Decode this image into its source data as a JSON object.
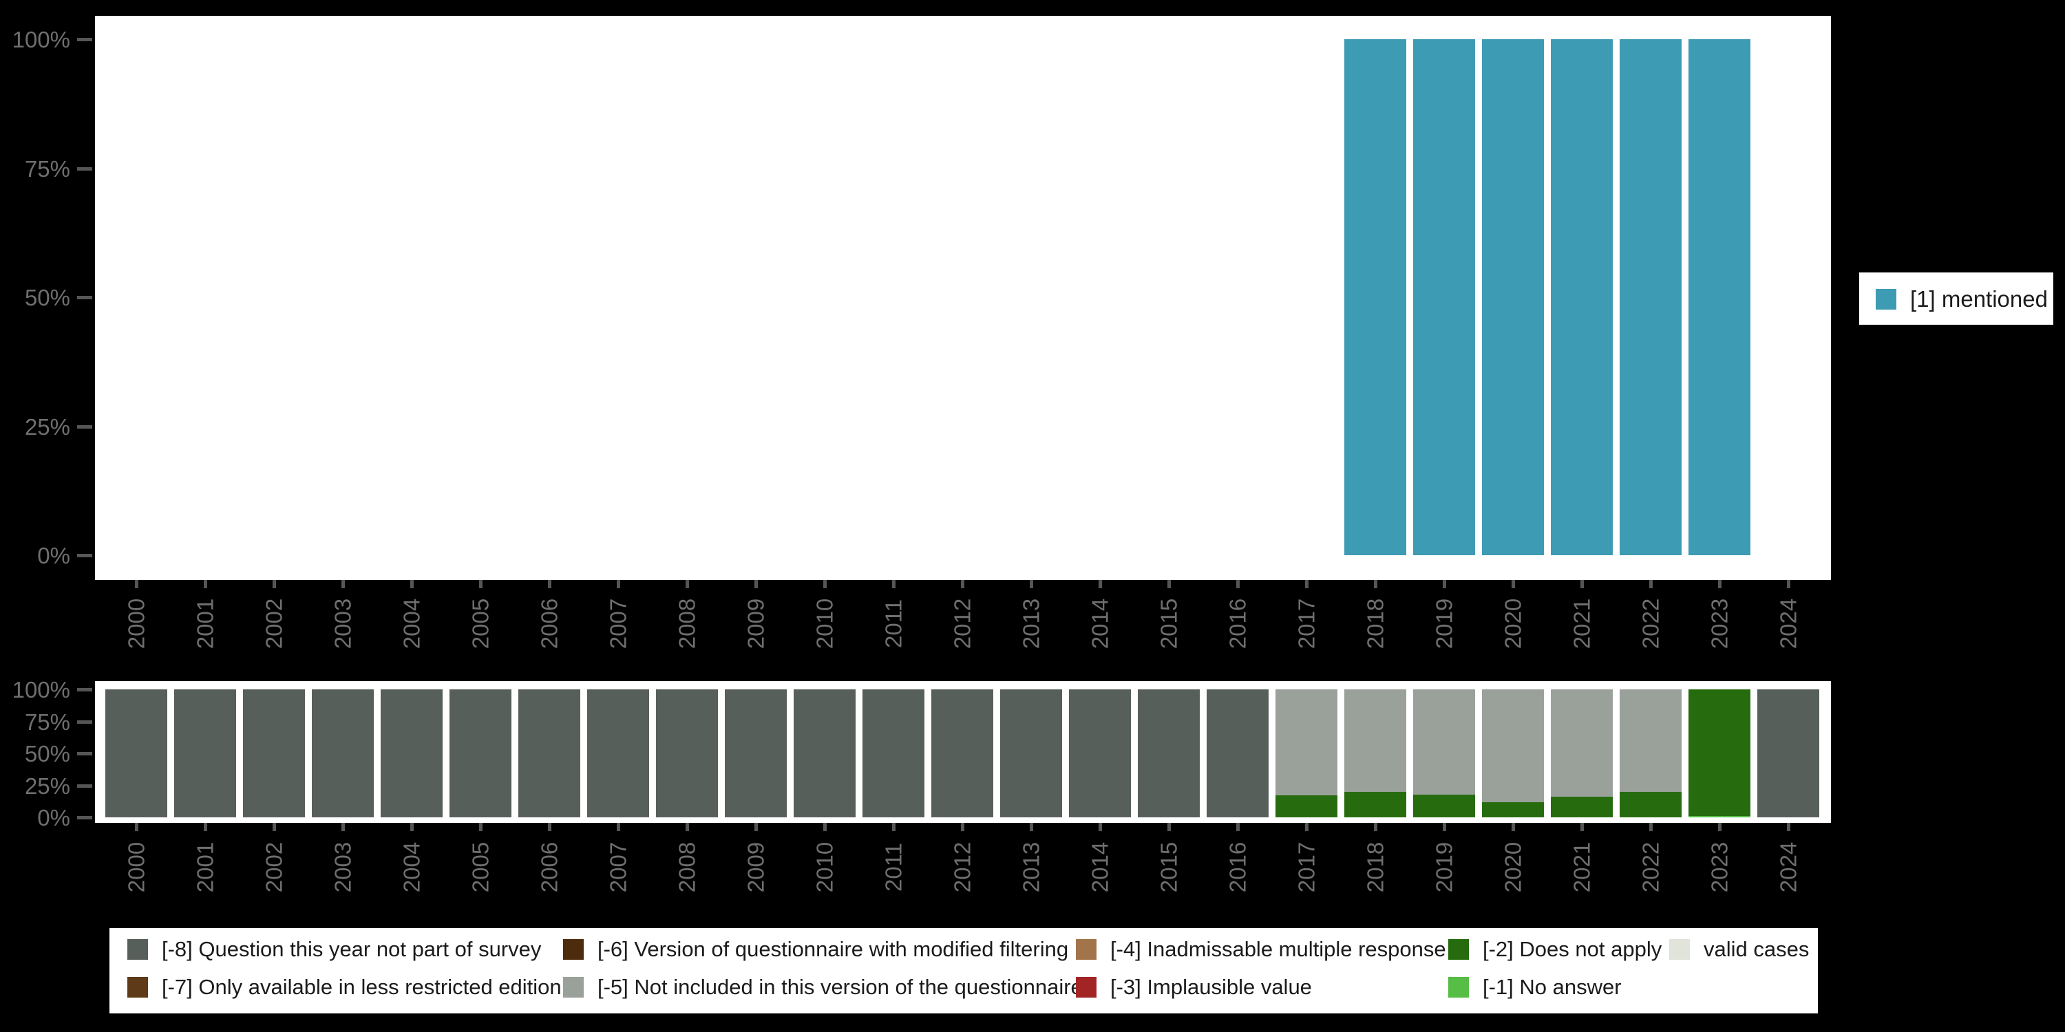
{
  "colors": {
    "background": "#000000",
    "plot_background": "#ffffff",
    "axis_text": "#6f6f6f",
    "tick_mark": "#565656",
    "legend_text": "#1b1b1b",
    "mentioned_teal": "#3d9bb4",
    "m8_slate": "#575f5a",
    "m7_brown": "#5e3a18",
    "m6_darkbrown": "#4c2c0c",
    "m5_gray": "#9aa19b",
    "m4_tan": "#a3744a",
    "m3_red": "#a32424",
    "m2_darkgreen": "#266c0f",
    "m1_lightgreen": "#56bd45",
    "valid_lightgray": "#e0e4db"
  },
  "chart_data": [
    {
      "type": "bar",
      "title": "",
      "xlabel": "",
      "ylabel": "",
      "ylim": [
        0,
        100
      ],
      "grid": false,
      "legend_position": "right",
      "y_ticks": [
        "0%",
        "25%",
        "50%",
        "75%",
        "100%"
      ],
      "y_tick_pct": [
        0,
        25,
        50,
        75,
        100
      ],
      "categories": [
        "2000",
        "2001",
        "2002",
        "2003",
        "2004",
        "2005",
        "2006",
        "2007",
        "2008",
        "2009",
        "2010",
        "2011",
        "2012",
        "2013",
        "2014",
        "2015",
        "2016",
        "2017",
        "2018",
        "2019",
        "2020",
        "2021",
        "2022",
        "2023",
        "2024"
      ],
      "series": [
        {
          "key": "1",
          "name": "[1] mentioned",
          "color": "#3d9bb4",
          "values": [
            0,
            0,
            0,
            0,
            0,
            0,
            0,
            0,
            0,
            0,
            0,
            0,
            0,
            0,
            0,
            0,
            0,
            0,
            100,
            100,
            100,
            100,
            100,
            100,
            0
          ]
        }
      ]
    },
    {
      "type": "stacked-bar",
      "title": "",
      "xlabel": "",
      "ylabel": "",
      "ylim": [
        0,
        100
      ],
      "grid": false,
      "legend_position": "bottom",
      "y_ticks": [
        "0%",
        "25%",
        "50%",
        "75%",
        "100%"
      ],
      "y_tick_pct": [
        0,
        25,
        50,
        75,
        100
      ],
      "categories": [
        "2000",
        "2001",
        "2002",
        "2003",
        "2004",
        "2005",
        "2006",
        "2007",
        "2008",
        "2009",
        "2010",
        "2011",
        "2012",
        "2013",
        "2014",
        "2015",
        "2016",
        "2017",
        "2018",
        "2019",
        "2020",
        "2021",
        "2022",
        "2023",
        "2024"
      ],
      "series": [
        {
          "key": "-1",
          "name": "[-1] No answer",
          "color": "#56bd45",
          "values": [
            0,
            0,
            0,
            0,
            0,
            0,
            0,
            0,
            0,
            0,
            0,
            0,
            0,
            0,
            0,
            0,
            0,
            0,
            0,
            0,
            0,
            0,
            0,
            1,
            0
          ]
        },
        {
          "key": "-2",
          "name": "[-2] Does not apply",
          "color": "#266c0f",
          "values": [
            0,
            0,
            0,
            0,
            0,
            0,
            0,
            0,
            0,
            0,
            0,
            0,
            0,
            0,
            0,
            0,
            0,
            17,
            20,
            18,
            12,
            16,
            20,
            99,
            0
          ]
        },
        {
          "key": "-5",
          "name": "[-5] Not included in this version of the questionnaire",
          "color": "#9aa19b",
          "values": [
            0,
            0,
            0,
            0,
            0,
            0,
            0,
            0,
            0,
            0,
            0,
            0,
            0,
            0,
            0,
            0,
            0,
            83,
            80,
            82,
            88,
            84,
            80,
            0,
            0
          ]
        },
        {
          "key": "-8",
          "name": "[-8] Question this year not part of survey",
          "color": "#575f5a",
          "values": [
            100,
            100,
            100,
            100,
            100,
            100,
            100,
            100,
            100,
            100,
            100,
            100,
            100,
            100,
            100,
            100,
            100,
            0,
            0,
            0,
            0,
            0,
            0,
            0,
            100
          ]
        }
      ]
    }
  ],
  "right_legend": {
    "items": [
      {
        "label": "[1] mentioned",
        "color": "#3d9bb4"
      }
    ]
  },
  "bottom_legend": {
    "items": [
      {
        "label": "[-8] Question this year not part of survey",
        "color": "#575f5a",
        "row": 0,
        "col": 0
      },
      {
        "label": "[-6] Version of questionnaire with modified filtering",
        "color": "#4c2c0c",
        "row": 0,
        "col": 1
      },
      {
        "label": "[-4] Inadmissable multiple response",
        "color": "#a3744a",
        "row": 0,
        "col": 2
      },
      {
        "label": "[-2] Does not apply",
        "color": "#266c0f",
        "row": 0,
        "col": 3
      },
      {
        "label": "valid cases",
        "color": "#e0e4db",
        "row": 0,
        "col": 4
      },
      {
        "label": "[-7] Only available in less restricted edition",
        "color": "#5e3a18",
        "row": 1,
        "col": 0
      },
      {
        "label": "[-5] Not included in this version of the questionnaire",
        "color": "#9aa19b",
        "row": 1,
        "col": 1
      },
      {
        "label": "[-3] Implausible value",
        "color": "#a32424",
        "row": 1,
        "col": 2
      },
      {
        "label": "[-1] No answer",
        "color": "#56bd45",
        "row": 1,
        "col": 3
      }
    ]
  }
}
